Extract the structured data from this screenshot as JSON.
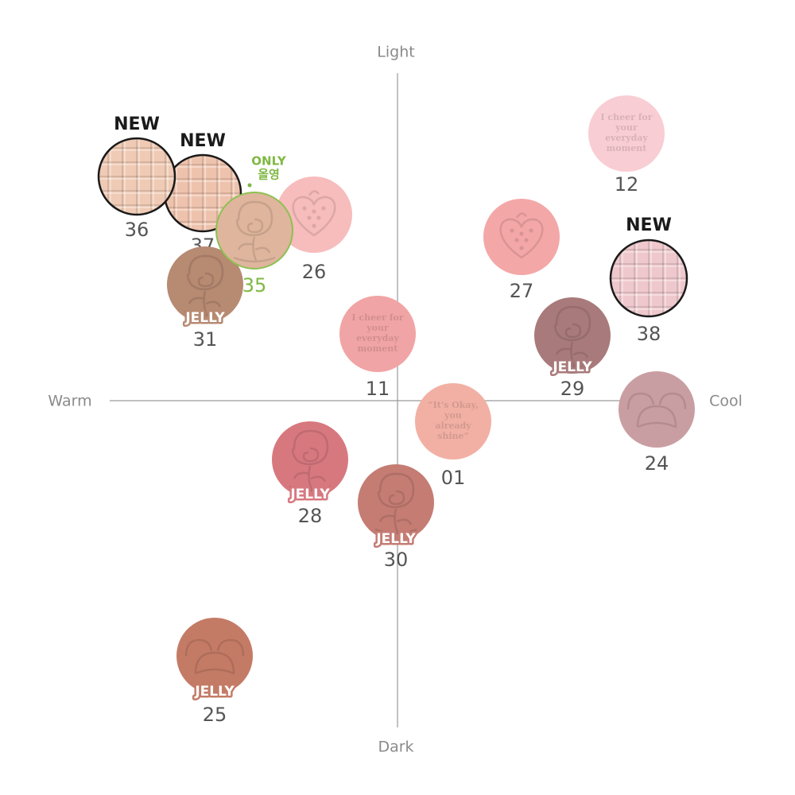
{
  "axes": {
    "top": "Light",
    "bottom": "Dark",
    "left": "Warm",
    "right": "Cool"
  },
  "items": [
    {
      "label": "26",
      "color": "#f7bcbc",
      "pattern": "strawberry"
    },
    {
      "label": "37",
      "color": "#eec3ad",
      "pattern": "waffle",
      "border": "#1a1a1a",
      "badge": [
        "NEW"
      ]
    },
    {
      "label": "36",
      "color": "#efcab4",
      "pattern": "waffle",
      "border": "#1a1a1a",
      "badge": [
        "NEW"
      ]
    },
    {
      "label": "31",
      "color": "#b78a72",
      "pattern": "rose",
      "badge": [
        "JELLY"
      ]
    },
    {
      "label": "35",
      "color": "#dfb59d",
      "pattern": "rose",
      "border": "#8cc152",
      "accent": "#7fb843",
      "badge": [
        "ONLY",
        "올영"
      ]
    },
    {
      "label": "12",
      "color": "#f8cdd3",
      "pattern": "text",
      "emboss": [
        "I cheer for",
        "your",
        "everyday",
        "moment"
      ]
    },
    {
      "label": "27",
      "color": "#f4a7a7",
      "pattern": "strawberry"
    },
    {
      "label": "38",
      "color": "#eec8cd",
      "pattern": "waffle",
      "border": "#1a1a1a",
      "badge": [
        "NEW"
      ]
    },
    {
      "label": "11",
      "color": "#f1a4a5",
      "pattern": "text",
      "emboss": [
        "I cheer for",
        "your",
        "everyday",
        "moment"
      ]
    },
    {
      "label": "29",
      "color": "#a97a7b",
      "pattern": "rose",
      "badge": [
        "JELLY"
      ]
    },
    {
      "label": "24",
      "color": "#c99ea2",
      "pattern": "bear"
    },
    {
      "label": "01",
      "color": "#f2b0a4",
      "pattern": "text",
      "emboss": [
        "“It's Okay,",
        "you",
        "already",
        "shine”"
      ]
    },
    {
      "label": "28",
      "color": "#d7787f",
      "pattern": "rose",
      "badge": [
        "JELLY"
      ]
    },
    {
      "label": "30",
      "color": "#c47c73",
      "pattern": "rose",
      "badge": [
        "JELLY"
      ]
    },
    {
      "label": "25",
      "color": "#c47b66",
      "pattern": "bear",
      "badge": [
        "JELLY"
      ]
    }
  ]
}
